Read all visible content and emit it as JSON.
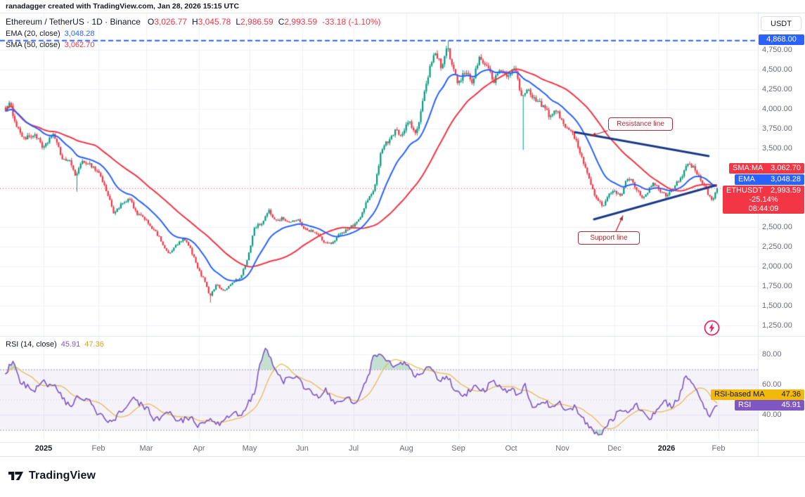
{
  "meta": {
    "attribution": "ranadagger created with TradingView.com, Jan 28, 2026 15:15 UTC"
  },
  "header": {
    "symbol_title": "Ethereum / TetherUS · 1D · Binance",
    "ohlc": {
      "o_label": "O",
      "o": "3,026.77",
      "h_label": "H",
      "h": "3,045.78",
      "l_label": "L",
      "l": "2,986.59",
      "c_label": "C",
      "c": "2,993.59",
      "change": "-33.18 (-1.10%)"
    },
    "ema_label": "EMA (20, close)",
    "ema_value": "3,048.28",
    "sma_label": "SMA (50, close)",
    "sma_value": "3,062.70"
  },
  "rsi_panel": {
    "label": "RSI (14, close)",
    "rsi_value": "45.91",
    "ma_value": "47.36"
  },
  "tags": {
    "sma": {
      "label": "SMA:MA",
      "value": "3,062.70"
    },
    "ema": {
      "label": "EMA",
      "value": "3,048.28"
    },
    "symbol": {
      "label": "ETHUSDT",
      "price": "2,993.59",
      "change_pct": "-25.14%",
      "countdown": "08:44:09"
    },
    "high": {
      "value": "4,868.00"
    },
    "rsi_ma": {
      "label": "RSI-based MA",
      "value": "47.36"
    },
    "rsi": {
      "label": "RSI",
      "value": "45.91"
    }
  },
  "annotations": {
    "resistance_label": "Resistance line",
    "support_label": "Support line"
  },
  "footer": {
    "brand": "TradingView"
  },
  "chart_data": {
    "type": "candlestick",
    "title": "Ethereum / TetherUS",
    "interval": "1D",
    "exchange": "Binance",
    "currency": "USDT",
    "ohlc": {
      "open": 3026.77,
      "high": 3045.78,
      "low": 2986.59,
      "close": 2993.59,
      "change": -33.18,
      "change_pct": -1.1
    },
    "last_price": 2993.59,
    "high_line": 4868.0,
    "indicators": {
      "ema20": 3048.28,
      "sma50": 3062.7,
      "rsi14": 45.91,
      "rsi_ma": 47.36,
      "symbol_change_pct": -25.14,
      "bar_countdown": "08:44:09"
    },
    "price_axis": {
      "min": 1150,
      "max": 5250,
      "ticks": [
        "4,750.00",
        "4,500.00",
        "4,250.00",
        "4,000.00",
        "3,750.00",
        "3,500.00",
        "2,500.00",
        "2,250.00",
        "2,000.00",
        "1,750.00",
        "1,500.00",
        "1,250.00"
      ],
      "tick_values": [
        4750,
        4500,
        4250,
        4000,
        3750,
        3500,
        2500,
        2250,
        2000,
        1750,
        1500,
        1250
      ]
    },
    "rsi_axis": {
      "ticks": [
        "80.00",
        "60.00",
        "40.00"
      ],
      "tick_values": [
        80,
        60,
        40
      ],
      "band": [
        30,
        70
      ]
    },
    "time_axis": {
      "labels": [
        "2025",
        "Feb",
        "Mar",
        "Apr",
        "May",
        "Jun",
        "Jul",
        "Aug",
        "Sep",
        "Oct",
        "Nov",
        "Dec",
        "2026",
        "Feb"
      ]
    },
    "close_anchors": [
      [
        0.0,
        4000
      ],
      [
        0.006,
        4060
      ],
      [
        0.017,
        3750
      ],
      [
        0.027,
        3620
      ],
      [
        0.042,
        3680
      ],
      [
        0.053,
        3480
      ],
      [
        0.066,
        3700
      ],
      [
        0.079,
        3380
      ],
      [
        0.091,
        3320
      ],
      [
        0.099,
        3150
      ],
      [
        0.109,
        3350
      ],
      [
        0.121,
        3280
      ],
      [
        0.132,
        3180
      ],
      [
        0.142,
        2950
      ],
      [
        0.152,
        2680
      ],
      [
        0.162,
        2780
      ],
      [
        0.175,
        2850
      ],
      [
        0.185,
        2650
      ],
      [
        0.195,
        2620
      ],
      [
        0.205,
        2500
      ],
      [
        0.217,
        2350
      ],
      [
        0.229,
        2150
      ],
      [
        0.241,
        2280
      ],
      [
        0.251,
        2350
      ],
      [
        0.261,
        2200
      ],
      [
        0.271,
        1950
      ],
      [
        0.281,
        1800
      ],
      [
        0.287,
        1620
      ],
      [
        0.297,
        1780
      ],
      [
        0.306,
        1680
      ],
      [
        0.314,
        1750
      ],
      [
        0.322,
        1820
      ],
      [
        0.33,
        1850
      ],
      [
        0.34,
        2100
      ],
      [
        0.35,
        2500
      ],
      [
        0.36,
        2550
      ],
      [
        0.37,
        2700
      ],
      [
        0.38,
        2580
      ],
      [
        0.389,
        2620
      ],
      [
        0.399,
        2550
      ],
      [
        0.409,
        2600
      ],
      [
        0.419,
        2500
      ],
      [
        0.429,
        2450
      ],
      [
        0.439,
        2400
      ],
      [
        0.449,
        2300
      ],
      [
        0.459,
        2280
      ],
      [
        0.468,
        2420
      ],
      [
        0.478,
        2450
      ],
      [
        0.488,
        2520
      ],
      [
        0.498,
        2600
      ],
      [
        0.508,
        2850
      ],
      [
        0.518,
        2950
      ],
      [
        0.528,
        3500
      ],
      [
        0.538,
        3600
      ],
      [
        0.547,
        3720
      ],
      [
        0.557,
        3680
      ],
      [
        0.567,
        3850
      ],
      [
        0.577,
        3650
      ],
      [
        0.587,
        4150
      ],
      [
        0.597,
        4550
      ],
      [
        0.605,
        4720
      ],
      [
        0.613,
        4500
      ],
      [
        0.621,
        4780
      ],
      [
        0.628,
        4550
      ],
      [
        0.636,
        4300
      ],
      [
        0.646,
        4480
      ],
      [
        0.656,
        4350
      ],
      [
        0.666,
        4650
      ],
      [
        0.676,
        4550
      ],
      [
        0.686,
        4350
      ],
      [
        0.696,
        4500
      ],
      [
        0.706,
        4400
      ],
      [
        0.715,
        4550
      ],
      [
        0.725,
        4150
      ],
      [
        0.735,
        4250
      ],
      [
        0.745,
        4100
      ],
      [
        0.755,
        4050
      ],
      [
        0.765,
        3900
      ],
      [
        0.775,
        3980
      ],
      [
        0.785,
        3800
      ],
      [
        0.794,
        3720
      ],
      [
        0.804,
        3550
      ],
      [
        0.814,
        3280
      ],
      [
        0.824,
        3000
      ],
      [
        0.832,
        2820
      ],
      [
        0.84,
        2780
      ],
      [
        0.848,
        2920
      ],
      [
        0.856,
        2950
      ],
      [
        0.864,
        2880
      ],
      [
        0.872,
        3080
      ],
      [
        0.879,
        3120
      ],
      [
        0.887,
        2980
      ],
      [
        0.895,
        2880
      ],
      [
        0.903,
        2960
      ],
      [
        0.911,
        3050
      ],
      [
        0.919,
        2980
      ],
      [
        0.927,
        2900
      ],
      [
        0.935,
        2960
      ],
      [
        0.943,
        3060
      ],
      [
        0.951,
        3160
      ],
      [
        0.959,
        3300
      ],
      [
        0.966,
        3260
      ],
      [
        0.974,
        3140
      ],
      [
        0.982,
        3020
      ],
      [
        0.988,
        2900
      ],
      [
        0.994,
        2850
      ],
      [
        1.0,
        2993.59
      ]
    ],
    "rsi_anchors": [
      [
        0.0,
        68
      ],
      [
        0.01,
        75
      ],
      [
        0.02,
        62
      ],
      [
        0.04,
        55
      ],
      [
        0.05,
        62
      ],
      [
        0.07,
        58
      ],
      [
        0.09,
        45
      ],
      [
        0.1,
        52
      ],
      [
        0.12,
        48
      ],
      [
        0.13,
        40
      ],
      [
        0.15,
        35
      ],
      [
        0.16,
        42
      ],
      [
        0.18,
        50
      ],
      [
        0.2,
        44
      ],
      [
        0.21,
        36
      ],
      [
        0.23,
        42
      ],
      [
        0.24,
        35
      ],
      [
        0.26,
        38
      ],
      [
        0.27,
        32
      ],
      [
        0.29,
        36
      ],
      [
        0.3,
        33
      ],
      [
        0.32,
        42
      ],
      [
        0.33,
        38
      ],
      [
        0.35,
        55
      ],
      [
        0.36,
        78
      ],
      [
        0.366,
        83
      ],
      [
        0.38,
        70
      ],
      [
        0.39,
        62
      ],
      [
        0.41,
        66
      ],
      [
        0.42,
        58
      ],
      [
        0.44,
        52
      ],
      [
        0.45,
        56
      ],
      [
        0.46,
        48
      ],
      [
        0.48,
        52
      ],
      [
        0.49,
        46
      ],
      [
        0.5,
        55
      ],
      [
        0.51,
        65
      ],
      [
        0.516,
        78
      ],
      [
        0.528,
        82
      ],
      [
        0.545,
        70
      ],
      [
        0.555,
        76
      ],
      [
        0.565,
        72
      ],
      [
        0.575,
        65
      ],
      [
        0.585,
        68
      ],
      [
        0.6,
        72
      ],
      [
        0.61,
        62
      ],
      [
        0.62,
        66
      ],
      [
        0.63,
        58
      ],
      [
        0.645,
        52
      ],
      [
        0.66,
        60
      ],
      [
        0.67,
        55
      ],
      [
        0.685,
        62
      ],
      [
        0.7,
        55
      ],
      [
        0.71,
        58
      ],
      [
        0.72,
        52
      ],
      [
        0.73,
        60
      ],
      [
        0.74,
        45
      ],
      [
        0.755,
        50
      ],
      [
        0.77,
        44
      ],
      [
        0.78,
        48
      ],
      [
        0.79,
        42
      ],
      [
        0.8,
        45
      ],
      [
        0.81,
        38
      ],
      [
        0.825,
        30
      ],
      [
        0.835,
        27
      ],
      [
        0.845,
        33
      ],
      [
        0.855,
        38
      ],
      [
        0.865,
        44
      ],
      [
        0.875,
        40
      ],
      [
        0.885,
        48
      ],
      [
        0.895,
        42
      ],
      [
        0.905,
        36
      ],
      [
        0.915,
        44
      ],
      [
        0.925,
        50
      ],
      [
        0.935,
        45
      ],
      [
        0.945,
        50
      ],
      [
        0.95,
        56
      ],
      [
        0.955,
        65
      ],
      [
        0.965,
        60
      ],
      [
        0.975,
        52
      ],
      [
        0.985,
        42
      ],
      [
        0.99,
        38
      ],
      [
        1.0,
        45.91
      ]
    ],
    "special_wicks": [
      {
        "t": 0.621,
        "high": 4868
      },
      {
        "t": 0.728,
        "low": 3480
      },
      {
        "t": 0.287,
        "low": 1540
      },
      {
        "t": 0.099,
        "low": 2950
      }
    ],
    "trendlines": {
      "resistance": {
        "t1": 0.8,
        "p1": 3706,
        "t2": 0.988,
        "p2": 3402
      },
      "support": {
        "t1": 0.827,
        "p1": 2598,
        "t2": 0.997,
        "p2": 3027
      }
    },
    "colors": {
      "up": "#089981",
      "down": "#f23645",
      "ema": "#2962ff",
      "sma": "#f23645",
      "rsi": "#7e57c2",
      "rsi_ma": "#e6bd56",
      "trend": "#1b3b85",
      "callout": "#b22833",
      "grid": "#eef1f7",
      "band_fill": "rgba(126,87,194,0.08)",
      "overbought_fill": "rgba(83,169,122,0.35)",
      "high_line": "#2962ff",
      "last_line": "#f23645",
      "flash": "#e91e63",
      "separator": "#e0e3eb"
    }
  }
}
